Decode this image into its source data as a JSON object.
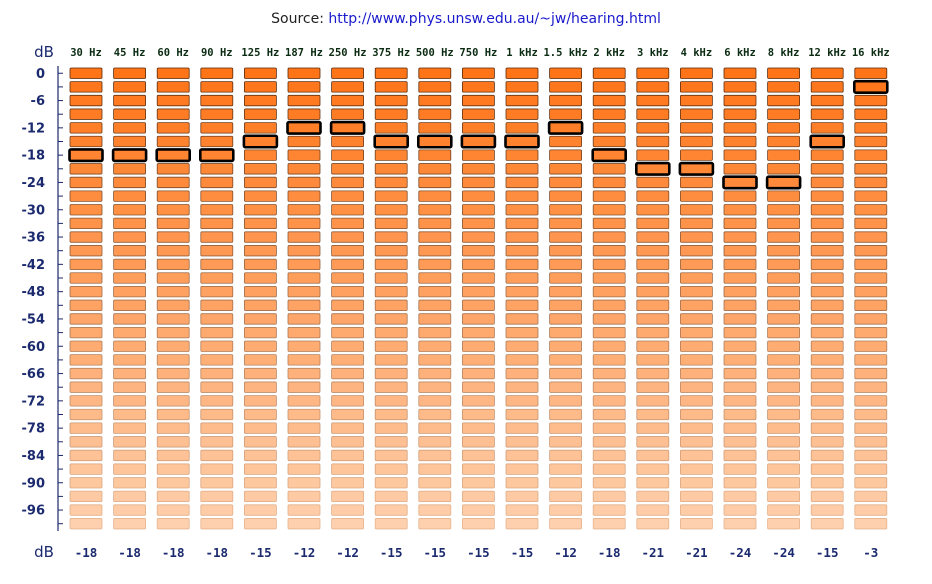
{
  "source": {
    "prefix": "Source:",
    "url": "http://www.phys.unsw.edu.au/~jw/hearing.html"
  },
  "chart_data": {
    "type": "heatmap",
    "y_unit_label": "dB",
    "x_unit_label": "dB",
    "categories": [
      "30 Hz",
      "45 Hz",
      "60 Hz",
      "90 Hz",
      "125 Hz",
      "187 Hz",
      "250 Hz",
      "375 Hz",
      "500 Hz",
      "750 Hz",
      "1 kHz",
      "1.5 kHz",
      "2 kHz",
      "3 kHz",
      "4 kHz",
      "6 kHz",
      "8 kHz",
      "12 kHz",
      "16 kHz"
    ],
    "values": [
      -18,
      -18,
      -18,
      -18,
      -15,
      -12,
      -12,
      -15,
      -15,
      -15,
      -15,
      -12,
      -18,
      -21,
      -21,
      -24,
      -24,
      -15,
      -3
    ],
    "value_labels": [
      "-18",
      "-18",
      "-18",
      "-18",
      "-15",
      "-12",
      "-12",
      "-15",
      "-15",
      "-15",
      "-15",
      "-12",
      "-18",
      "-21",
      "-21",
      "-24",
      "-24",
      "-15",
      "-3"
    ],
    "y_ticks": [
      "0",
      "-6",
      "-12",
      "-18",
      "-24",
      "-30",
      "-36",
      "-42",
      "-48",
      "-54",
      "-60",
      "-66",
      "-72",
      "-78",
      "-84",
      "-90",
      "-96"
    ],
    "y_tick_values": [
      0,
      -6,
      -12,
      -18,
      -24,
      -30,
      -36,
      -42,
      -48,
      -54,
      -60,
      -66,
      -72,
      -78,
      -84,
      -90,
      -96
    ],
    "levels": [
      0,
      -3,
      -6,
      -9,
      -12,
      -15,
      -18,
      -21,
      -24,
      -27,
      -30,
      -33,
      -36,
      -39,
      -42,
      -45,
      -48,
      -51,
      -54,
      -57,
      -60,
      -63,
      -66,
      -69,
      -72,
      -75,
      -78,
      -81,
      -84,
      -87,
      -90,
      -93,
      -96,
      -99
    ],
    "ylim": [
      -99,
      0
    ]
  },
  "colors": {
    "cell_top": "#ff7417",
    "cell_bottom": "#fed0ad",
    "cell_border": "#5a2a0a",
    "selected_border": "#000000",
    "axis": "#1b2a6e",
    "freq_text": "#0b2b12",
    "link": "#1a1acc"
  }
}
